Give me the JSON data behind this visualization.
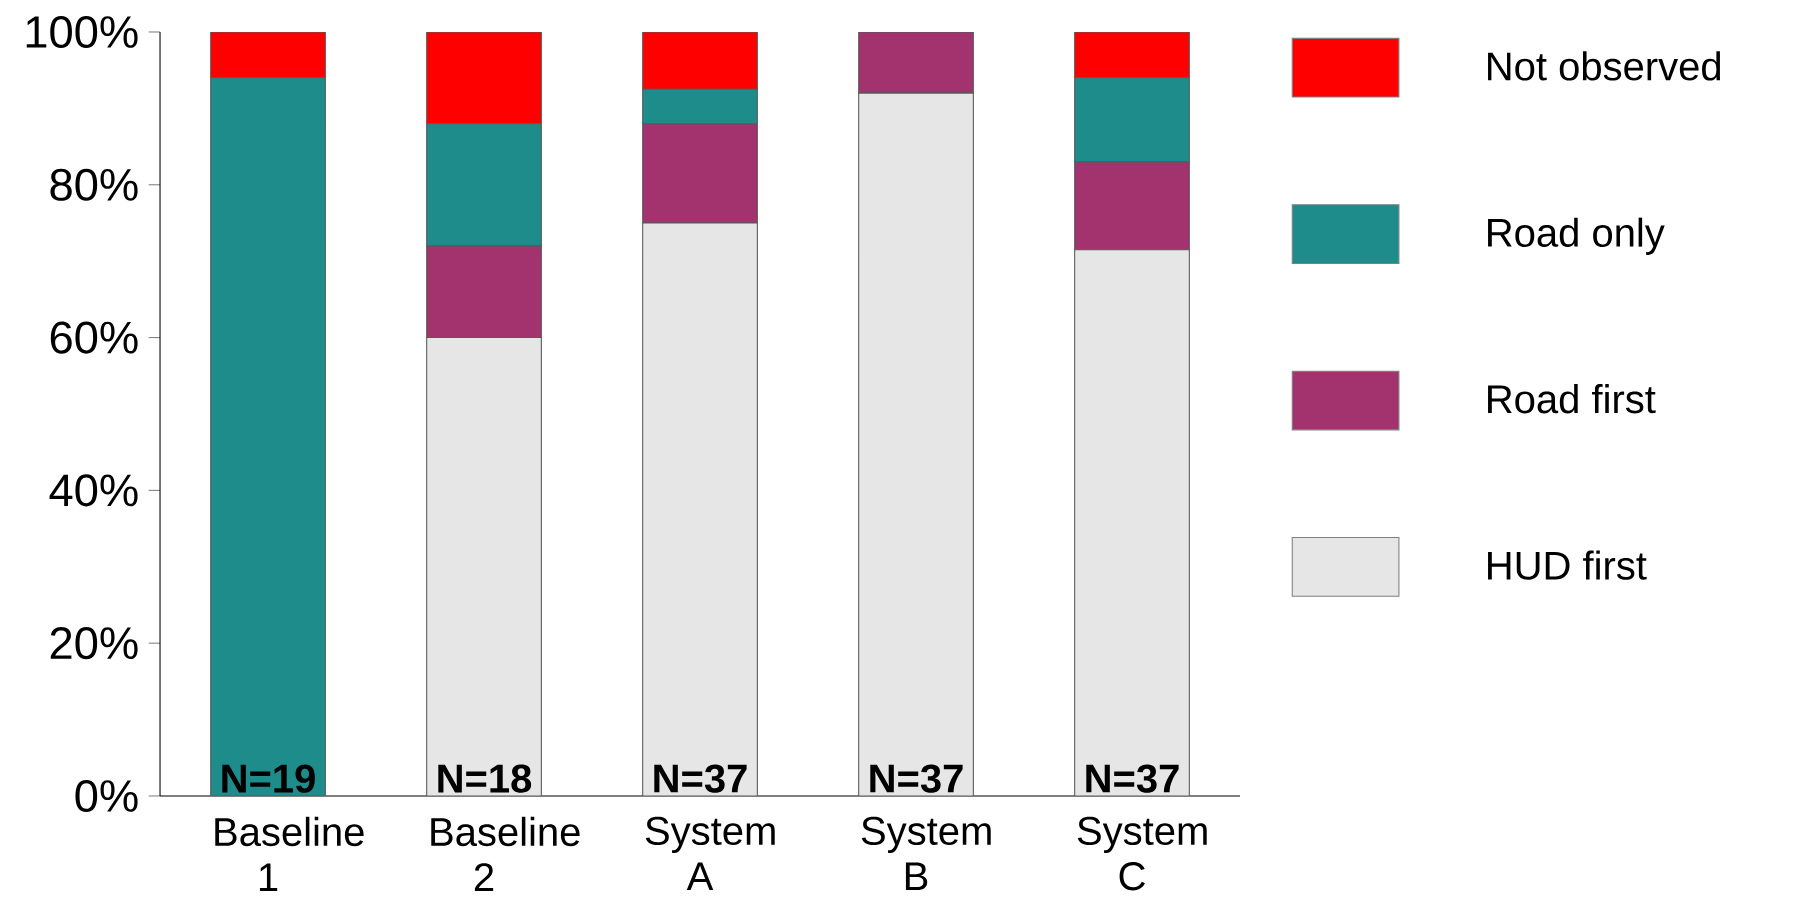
{
  "chart_data": {
    "type": "bar",
    "stacked": true,
    "categories": [
      "Baseline 1",
      "Baseline 2",
      "System A",
      "System B",
      "System C"
    ],
    "series": [
      {
        "name": "HUD first",
        "color": "#e6e6e6",
        "values": [
          0,
          60,
          75,
          92,
          71.5
        ]
      },
      {
        "name": "Road first",
        "color": "#a3336e",
        "values": [
          0,
          12,
          13,
          8,
          11.5
        ]
      },
      {
        "name": "Road only",
        "color": "#1f8c8c",
        "values": [
          94,
          16,
          4.5,
          0,
          11
        ]
      },
      {
        "name": "Not observed",
        "color": "#ff0000",
        "values": [
          6,
          12,
          7.5,
          0,
          6
        ]
      }
    ],
    "ylim": [
      0,
      100
    ],
    "yticks": [
      {
        "value": 0,
        "label": "0%"
      },
      {
        "value": 20,
        "label": "20%"
      },
      {
        "value": 40,
        "label": "40%"
      },
      {
        "value": 60,
        "label": "60%"
      },
      {
        "value": 80,
        "label": "80%"
      },
      {
        "value": 100,
        "label": "100%"
      }
    ],
    "legend": "right",
    "grid": false,
    "annotations": [
      "N=19",
      "N=18",
      "N=37",
      "N=37",
      "N=37"
    ]
  }
}
